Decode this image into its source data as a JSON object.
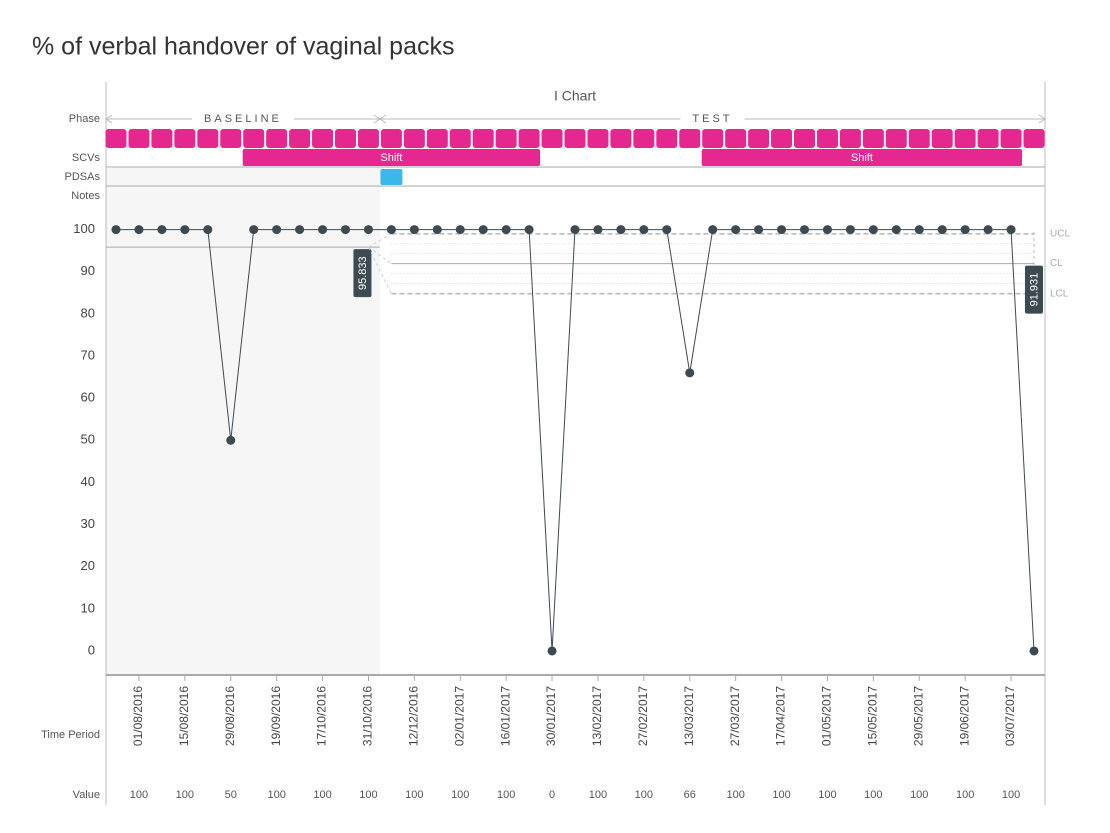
{
  "chart_data": {
    "type": "line",
    "title": "% of verbal handover of vaginal packs",
    "subtitle": "I Chart",
    "row_labels": {
      "phase": "Phase",
      "scv": "SCVs",
      "pdsa": "PDSAs",
      "notes": "Notes",
      "time": "Time Period",
      "value": "Value"
    },
    "categories": [
      null,
      "01/08/2016",
      null,
      "15/08/2016",
      null,
      "29/08/2016",
      null,
      "19/09/2016",
      null,
      "17/10/2016",
      null,
      "31/10/2016",
      null,
      "12/12/2016",
      null,
      "02/01/2017",
      null,
      "16/01/2017",
      null,
      "30/01/2017",
      null,
      "13/02/2017",
      null,
      "27/02/2017",
      null,
      "13/03/2017",
      null,
      "27/03/2017",
      null,
      "17/04/2017",
      null,
      "01/05/2017",
      null,
      "15/05/2017",
      null,
      "29/05/2017",
      null,
      "19/06/2017",
      null,
      "03/07/2017",
      null
    ],
    "values": [
      100,
      100,
      100,
      100,
      100,
      50,
      100,
      100,
      100,
      100,
      100,
      100,
      100,
      100,
      100,
      100,
      100,
      100,
      100,
      0,
      100,
      100,
      100,
      100,
      100,
      66,
      100,
      100,
      100,
      100,
      100,
      100,
      100,
      100,
      100,
      100,
      100,
      100,
      100,
      100,
      0
    ],
    "color": "#3d4a52",
    "phases": [
      {
        "name": "BASELINE",
        "from": 0,
        "to": 11,
        "cl": 95.833
      },
      {
        "name": "TEST",
        "from": 12,
        "to": 40,
        "ucl": 99.0,
        "cl": 91.931,
        "lcl": 84.8
      }
    ],
    "limit_labels": {
      "ucl": "UCL",
      "cl": "CL",
      "lcl": "LCL"
    },
    "scvs": [
      {
        "label": "Shift",
        "from": 6,
        "to": 18
      },
      {
        "label": "Shift",
        "from": 26,
        "to": 39
      }
    ],
    "pdsas": [
      {
        "from": 12,
        "to": 12
      }
    ],
    "phase_color": "#e5288f",
    "pdsa_color": "#3bb8ea",
    "ylim": [
      -5.7,
      105.6
    ],
    "yticks": [
      0,
      10,
      20,
      30,
      40,
      50,
      60,
      70,
      80,
      90,
      100
    ]
  }
}
